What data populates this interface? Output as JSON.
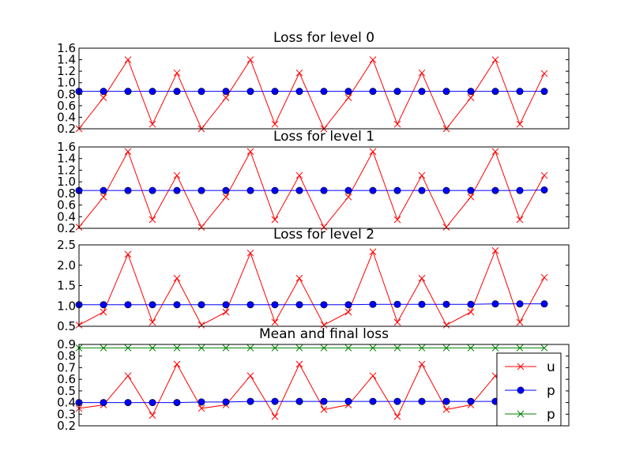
{
  "chart_data": [
    {
      "type": "line",
      "title": "Loss for level 0",
      "xlabel": "",
      "ylabel": "",
      "ylim": [
        0.2,
        1.6
      ],
      "yticks": [
        "0.2",
        "0.4",
        "0.6",
        "0.8",
        "1.0",
        "1.2",
        "1.4",
        "1.6"
      ],
      "x": [
        0,
        1,
        2,
        3,
        4,
        5,
        6,
        7,
        8,
        9,
        10,
        11,
        12,
        13,
        14,
        15,
        16,
        17,
        18,
        19
      ],
      "series": [
        {
          "values": [
            0.2,
            0.74,
            1.4,
            0.28,
            1.17,
            0.2,
            0.74,
            1.4,
            0.28,
            1.17,
            0.2,
            0.74,
            1.4,
            0.28,
            1.17,
            0.2,
            0.74,
            1.4,
            0.28,
            1.16
          ],
          "color": "#ff0000",
          "marker": "x"
        },
        {
          "values": [
            0.85,
            0.85,
            0.85,
            0.85,
            0.85,
            0.85,
            0.85,
            0.85,
            0.85,
            0.85,
            0.85,
            0.85,
            0.85,
            0.85,
            0.85,
            0.85,
            0.85,
            0.85,
            0.85,
            0.85
          ],
          "color": "#0000ff",
          "marker": "o"
        }
      ]
    },
    {
      "type": "line",
      "title": "Loss for level 1",
      "xlabel": "",
      "ylabel": "",
      "ylim": [
        0.2,
        1.6
      ],
      "yticks": [
        "0.2",
        "0.4",
        "0.6",
        "0.8",
        "1.0",
        "1.2",
        "1.4",
        "1.6"
      ],
      "x": [
        0,
        1,
        2,
        3,
        4,
        5,
        6,
        7,
        8,
        9,
        10,
        11,
        12,
        13,
        14,
        15,
        16,
        17,
        18,
        19
      ],
      "series": [
        {
          "values": [
            0.22,
            0.74,
            1.52,
            0.35,
            1.11,
            0.22,
            0.74,
            1.52,
            0.35,
            1.11,
            0.22,
            0.74,
            1.52,
            0.35,
            1.11,
            0.22,
            0.74,
            1.52,
            0.35,
            1.11
          ],
          "color": "#ff0000",
          "marker": "x"
        },
        {
          "values": [
            0.85,
            0.85,
            0.85,
            0.85,
            0.85,
            0.85,
            0.85,
            0.85,
            0.85,
            0.85,
            0.85,
            0.85,
            0.85,
            0.85,
            0.85,
            0.85,
            0.85,
            0.85,
            0.85,
            0.86
          ],
          "color": "#0000ff",
          "marker": "o"
        }
      ]
    },
    {
      "type": "line",
      "title": "Loss for level 2",
      "xlabel": "",
      "ylabel": "",
      "ylim": [
        0.5,
        2.5
      ],
      "yticks": [
        "0.5",
        "1.0",
        "1.5",
        "2.0",
        "2.5"
      ],
      "x": [
        0,
        1,
        2,
        3,
        4,
        5,
        6,
        7,
        8,
        9,
        10,
        11,
        12,
        13,
        14,
        15,
        16,
        17,
        18,
        19
      ],
      "series": [
        {
          "values": [
            0.53,
            0.85,
            2.27,
            0.6,
            1.68,
            0.53,
            0.85,
            2.3,
            0.6,
            1.68,
            0.53,
            0.85,
            2.33,
            0.6,
            1.68,
            0.53,
            0.85,
            2.36,
            0.6,
            1.7
          ],
          "color": "#ff0000",
          "marker": "x"
        },
        {
          "values": [
            1.03,
            1.03,
            1.03,
            1.03,
            1.03,
            1.03,
            1.03,
            1.03,
            1.03,
            1.03,
            1.03,
            1.03,
            1.04,
            1.04,
            1.04,
            1.04,
            1.04,
            1.05,
            1.05,
            1.05
          ],
          "color": "#0000ff",
          "marker": "o"
        }
      ]
    },
    {
      "type": "line",
      "title": "Mean and final loss",
      "xlabel": "",
      "ylabel": "",
      "ylim": [
        0.2,
        0.9
      ],
      "yticks": [
        "0.2",
        "0.3",
        "0.4",
        "0.5",
        "0.6",
        "0.7",
        "0.8",
        "0.9"
      ],
      "x": [
        0,
        1,
        2,
        3,
        4,
        5,
        6,
        7,
        8,
        9,
        10,
        11,
        12,
        13,
        14,
        15,
        16,
        17,
        18,
        19
      ],
      "legend": "top-right",
      "series": [
        {
          "name": "u",
          "values": [
            0.35,
            0.38,
            0.63,
            0.29,
            0.73,
            0.35,
            0.38,
            0.63,
            0.28,
            0.73,
            0.34,
            0.38,
            0.63,
            0.28,
            0.73,
            0.34,
            0.38,
            0.63,
            0.28,
            0.73
          ],
          "color": "#ff0000",
          "marker": "x"
        },
        {
          "name": "p",
          "values": [
            0.4,
            0.4,
            0.4,
            0.4,
            0.4,
            0.405,
            0.405,
            0.41,
            0.41,
            0.41,
            0.41,
            0.41,
            0.41,
            0.41,
            0.41,
            0.41,
            0.41,
            0.41,
            0.41,
            0.41
          ],
          "color": "#0000ff",
          "marker": "o"
        },
        {
          "name": "p",
          "values": [
            0.87,
            0.87,
            0.87,
            0.87,
            0.87,
            0.87,
            0.87,
            0.87,
            0.87,
            0.87,
            0.87,
            0.87,
            0.87,
            0.87,
            0.87,
            0.87,
            0.87,
            0.87,
            0.87,
            0.87
          ],
          "color": "#008000",
          "marker": "x"
        }
      ]
    }
  ]
}
